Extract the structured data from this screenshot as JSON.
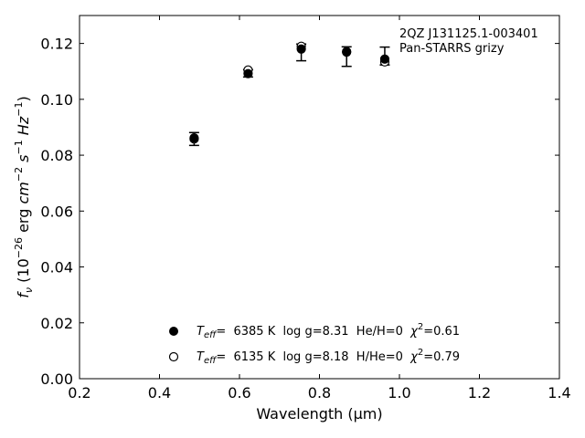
{
  "chart_data": {
    "type": "scatter",
    "xlabel": "Wavelength (μm)",
    "ylabel_parts": {
      "f": "f",
      "nu": "ν",
      "open": " (10",
      "exp1": "−26",
      "erg": " erg ",
      "cm": "cm",
      "exp2": "−2",
      "s": " s",
      "exp3": "−1",
      "hz": " Hz",
      "exp4": "−1",
      "close": ")"
    },
    "xlim": [
      0.2,
      1.4
    ],
    "ylim": [
      0.0,
      0.13
    ],
    "x_ticks": [
      "0.2",
      "0.4",
      "0.6",
      "0.8",
      "1.0",
      "1.2",
      "1.4"
    ],
    "x_tick_values": [
      0.2,
      0.4,
      0.6,
      0.8,
      1.0,
      1.2,
      1.4
    ],
    "y_ticks": [
      "0.00",
      "0.02",
      "0.04",
      "0.06",
      "0.08",
      "0.10",
      "0.12"
    ],
    "y_tick_values": [
      0.0,
      0.02,
      0.04,
      0.06,
      0.08,
      0.1,
      0.12
    ],
    "annotation": {
      "line1": "2QZ J131125.1-003401",
      "line2": "Pan-STARRS grizy"
    },
    "observed": [
      {
        "x": 0.4866,
        "y": 0.0858,
        "err": 0.0023
      },
      {
        "x": 0.6215,
        "y": 0.1093,
        "err": 0.0013
      },
      {
        "x": 0.7545,
        "y": 0.1168,
        "err": 0.003
      },
      {
        "x": 0.8679,
        "y": 0.1153,
        "err": 0.0035
      },
      {
        "x": 0.9633,
        "y": 0.1155,
        "err": 0.0032
      }
    ],
    "series": [
      {
        "marker": "filled",
        "values": [
          {
            "x": 0.4866,
            "y": 0.0862
          },
          {
            "x": 0.6215,
            "y": 0.1092
          },
          {
            "x": 0.7545,
            "y": 0.118
          },
          {
            "x": 0.8679,
            "y": 0.1171
          },
          {
            "x": 0.9633,
            "y": 0.1144
          }
        ],
        "legend": {
          "t": "T",
          "sub": "eff",
          "eq": "=  6385 K  log g=8.31  He/H=0  ",
          "chi": "χ",
          "sup": "2",
          "tail": "=0.61"
        }
      },
      {
        "marker": "open",
        "values": [
          {
            "x": 0.4866,
            "y": 0.0858
          },
          {
            "x": 0.6215,
            "y": 0.1105
          },
          {
            "x": 0.7545,
            "y": 0.119
          },
          {
            "x": 0.8679,
            "y": 0.1169
          },
          {
            "x": 0.9633,
            "y": 0.1134
          }
        ],
        "legend": {
          "t": "T",
          "sub": "eff",
          "eq": "=  6135 K  log g=8.18  H/He=0  ",
          "chi": "χ",
          "sup": "2",
          "tail": "=0.79"
        }
      }
    ],
    "grid": false,
    "legend_position": "bottom-center"
  }
}
